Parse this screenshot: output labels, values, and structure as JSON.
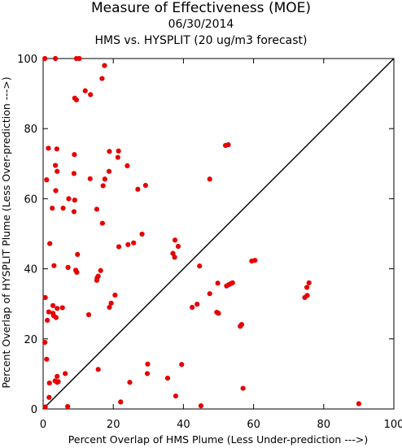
{
  "chart_data": {
    "type": "scatter",
    "title": "Measure of Effectiveness (MOE)",
    "subtitle_date": "06/30/2014",
    "subtitle_compare": "HMS vs. HYSPLIT  (20 ug/m3 forecast)",
    "xlabel": "Percent Overlap of HMS Plume (Less Under-prediction --->)",
    "ylabel": "Percent Overlap of HYSPLIT Plume (Less Over-prediction --->)",
    "xlim": [
      0,
      100
    ],
    "ylim": [
      0,
      100
    ],
    "xticks": [
      "0",
      "20",
      "40",
      "60",
      "80",
      "100"
    ],
    "yticks": [
      "0",
      "20",
      "40",
      "60",
      "80",
      "100"
    ],
    "reference_line": "diagonal y = x",
    "point_color": "#e60000",
    "line_color": "#000000",
    "points": [
      [
        0.5,
        100
      ],
      [
        3.5,
        100
      ],
      [
        9.5,
        100
      ],
      [
        10.3,
        100
      ],
      [
        17.5,
        98
      ],
      [
        16.8,
        94.3
      ],
      [
        12,
        90.8
      ],
      [
        13.5,
        89.7
      ],
      [
        9,
        88.7
      ],
      [
        9.5,
        88.2
      ],
      [
        52,
        75.2
      ],
      [
        52.8,
        75.4
      ],
      [
        1.5,
        74.4
      ],
      [
        3.9,
        74.2
      ],
      [
        8.9,
        72.6
      ],
      [
        18.9,
        73.5
      ],
      [
        21.5,
        73.6
      ],
      [
        21.3,
        71.8
      ],
      [
        24,
        69.4
      ],
      [
        3.5,
        69.5
      ],
      [
        4,
        67.8
      ],
      [
        8.8,
        67.2
      ],
      [
        18.8,
        67.8
      ],
      [
        17.6,
        65.6
      ],
      [
        13.4,
        65.7
      ],
      [
        1,
        65.4
      ],
      [
        47.5,
        65.6
      ],
      [
        17.1,
        63.7
      ],
      [
        27,
        62.7
      ],
      [
        29.2,
        63.8
      ],
      [
        3.6,
        62.3
      ],
      [
        7.3,
        60
      ],
      [
        9,
        59.6
      ],
      [
        2.6,
        57.3
      ],
      [
        5.7,
        57.3
      ],
      [
        8.8,
        56.3
      ],
      [
        15.3,
        57
      ],
      [
        16.9,
        53
      ],
      [
        28.2,
        49.9
      ],
      [
        37.6,
        48.2
      ],
      [
        38.5,
        46.4
      ],
      [
        1.9,
        47.2
      ],
      [
        21.6,
        46.3
      ],
      [
        24.2,
        46.9
      ],
      [
        25.8,
        47.4
      ],
      [
        9.8,
        44.1
      ],
      [
        37,
        44.4
      ],
      [
        37.5,
        43.3
      ],
      [
        60.4,
        42.4
      ],
      [
        59.5,
        42.2
      ],
      [
        3.1,
        40.9
      ],
      [
        7.1,
        40.4
      ],
      [
        9.3,
        39.6
      ],
      [
        9.6,
        39
      ],
      [
        16.4,
        39.5
      ],
      [
        15.4,
        37.4
      ],
      [
        15.7,
        37.9
      ],
      [
        15.3,
        36.7
      ],
      [
        44.6,
        40.8
      ],
      [
        49.8,
        35.9
      ],
      [
        52.3,
        35.1
      ],
      [
        53.6,
        35.8
      ],
      [
        54,
        36
      ],
      [
        53,
        35.5
      ],
      [
        75.8,
        36
      ],
      [
        75.2,
        34.7
      ],
      [
        47.5,
        32.9
      ],
      [
        20.5,
        32.5
      ],
      [
        0.6,
        31.8
      ],
      [
        75.3,
        32.4
      ],
      [
        74.6,
        31.8
      ],
      [
        19.4,
        30.2
      ],
      [
        18.9,
        29
      ],
      [
        42.5,
        29
      ],
      [
        43.9,
        29.9
      ],
      [
        2.8,
        29.5
      ],
      [
        1.6,
        27.7
      ],
      [
        2.8,
        27.3
      ],
      [
        4,
        28.7
      ],
      [
        5.5,
        28.9
      ],
      [
        3,
        26.6
      ],
      [
        13,
        26.9
      ],
      [
        49.5,
        27.6
      ],
      [
        50,
        27.3
      ],
      [
        3.7,
        26.1
      ],
      [
        1.2,
        25.3
      ],
      [
        56.6,
        24.1
      ],
      [
        56.2,
        23.6
      ],
      [
        0.5,
        19
      ],
      [
        1,
        14.2
      ],
      [
        29.8,
        12.8
      ],
      [
        39.5,
        12.7
      ],
      [
        15.7,
        11.3
      ],
      [
        29.7,
        10.1
      ],
      [
        6.3,
        10.1
      ],
      [
        4,
        9.3
      ],
      [
        3.4,
        8
      ],
      [
        4,
        7.6
      ],
      [
        4.3,
        7.8
      ],
      [
        1.8,
        7.4
      ],
      [
        35.5,
        8.8
      ],
      [
        24.7,
        7.6
      ],
      [
        57,
        5.9
      ],
      [
        37.8,
        3.7
      ],
      [
        1.7,
        3.3
      ],
      [
        22.1,
        2
      ],
      [
        90,
        1.5
      ],
      [
        0.6,
        0.6
      ],
      [
        7,
        0.7
      ],
      [
        45,
        0.9
      ]
    ]
  }
}
